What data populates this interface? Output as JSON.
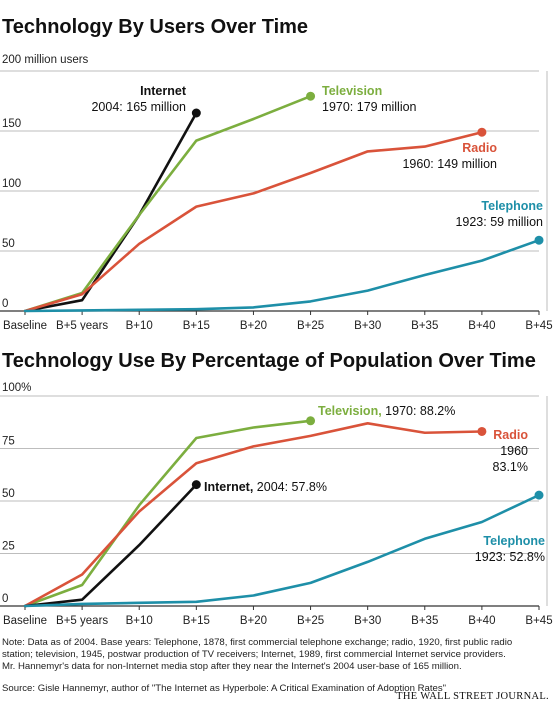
{
  "chart_data": [
    {
      "type": "line",
      "title": "Technology By Users Over Time",
      "ylabel": "200 million users",
      "ylim": [
        0,
        200
      ],
      "yticks": [
        0,
        50,
        100,
        150
      ],
      "categories": [
        "Baseline",
        "B+5 years",
        "B+10",
        "B+15",
        "B+20",
        "B+25",
        "B+30",
        "B+35",
        "B+40",
        "B+45"
      ],
      "series": [
        {
          "name": "Internet",
          "color": "#111111",
          "x": [
            0,
            5,
            10,
            15
          ],
          "values": [
            0,
            9,
            80,
            165
          ],
          "endpoint": {
            "label": "Internet",
            "value_label": "2004: 165 million"
          }
        },
        {
          "name": "Television",
          "color": "#7cae3f",
          "x": [
            0,
            5,
            10,
            15,
            20,
            25
          ],
          "values": [
            0,
            15,
            80,
            142,
            160,
            179
          ],
          "endpoint": {
            "label": "Television",
            "value_label": "1970: 179 million"
          }
        },
        {
          "name": "Radio",
          "color": "#d9533a",
          "x": [
            0,
            5,
            10,
            15,
            20,
            25,
            30,
            35,
            40
          ],
          "values": [
            0,
            14,
            56,
            87,
            98,
            115,
            133,
            137,
            149
          ],
          "endpoint": {
            "label": "Radio",
            "value_label": "1960: 149 million"
          }
        },
        {
          "name": "Telephone",
          "color": "#1e8fa8",
          "x": [
            0,
            5,
            10,
            15,
            20,
            25,
            30,
            35,
            40,
            45
          ],
          "values": [
            0,
            0.5,
            1,
            1.5,
            3,
            8,
            17,
            30,
            42,
            59
          ],
          "endpoint": {
            "label": "Telephone",
            "value_label": "1923: 59 million"
          }
        }
      ]
    },
    {
      "type": "line",
      "title": "Technology Use By Percentage of Population Over Time",
      "ylabel": "100%",
      "ylim": [
        0,
        100
      ],
      "yticks": [
        0,
        25,
        50,
        75
      ],
      "categories": [
        "Baseline",
        "B+5 years",
        "B+10",
        "B+15",
        "B+20",
        "B+25",
        "B+30",
        "B+35",
        "B+40",
        "B+45"
      ],
      "series": [
        {
          "name": "Television",
          "color": "#7cae3f",
          "x": [
            0,
            5,
            10,
            15,
            20,
            25
          ],
          "values": [
            0,
            10,
            48,
            80,
            85,
            88.2
          ],
          "endpoint": {
            "label": "Television,",
            "value_label": "1970: 88.2%"
          }
        },
        {
          "name": "Radio",
          "color": "#d9533a",
          "x": [
            0,
            5,
            10,
            15,
            20,
            25,
            30,
            35,
            40
          ],
          "values": [
            0,
            15,
            45,
            68,
            76,
            81,
            87,
            82.5,
            83.1
          ],
          "endpoint": {
            "label": "Radio",
            "value_label": "1960",
            "value_label2": "83.1%"
          }
        },
        {
          "name": "Internet",
          "color": "#111111",
          "x": [
            0,
            5,
            10,
            15
          ],
          "values": [
            0,
            3,
            29,
            57.8
          ],
          "endpoint": {
            "label": "Internet,",
            "value_label": "2004: 57.8%"
          }
        },
        {
          "name": "Telephone",
          "color": "#1e8fa8",
          "x": [
            0,
            5,
            10,
            15,
            20,
            25,
            30,
            35,
            40,
            45
          ],
          "values": [
            0,
            1,
            1.5,
            2,
            5,
            11,
            21,
            32,
            40,
            52.8
          ],
          "endpoint": {
            "label": "Telephone",
            "value_label": "1923: 52.8%"
          }
        }
      ]
    }
  ],
  "footer": {
    "note_1": "Note: Data as of 2004. Base years: Telephone, 1878, first commercial telephone exchange; radio, 1920, first public radio",
    "note_2": "station; television, 1945, postwar production of TV receivers; Internet, 1989, first commercial Internet service providers.",
    "note_3": "Mr. Hannemyr's data for non-Internet media stop after they near the Internet's 2004 user-base of 165 million.",
    "source": "Source: Gisle Hannemyr, author of \"The Internet as Hyperbole: A Critical Examination of Adoption Rates\"",
    "publisher": "THE WALL STREET JOURNAL."
  }
}
